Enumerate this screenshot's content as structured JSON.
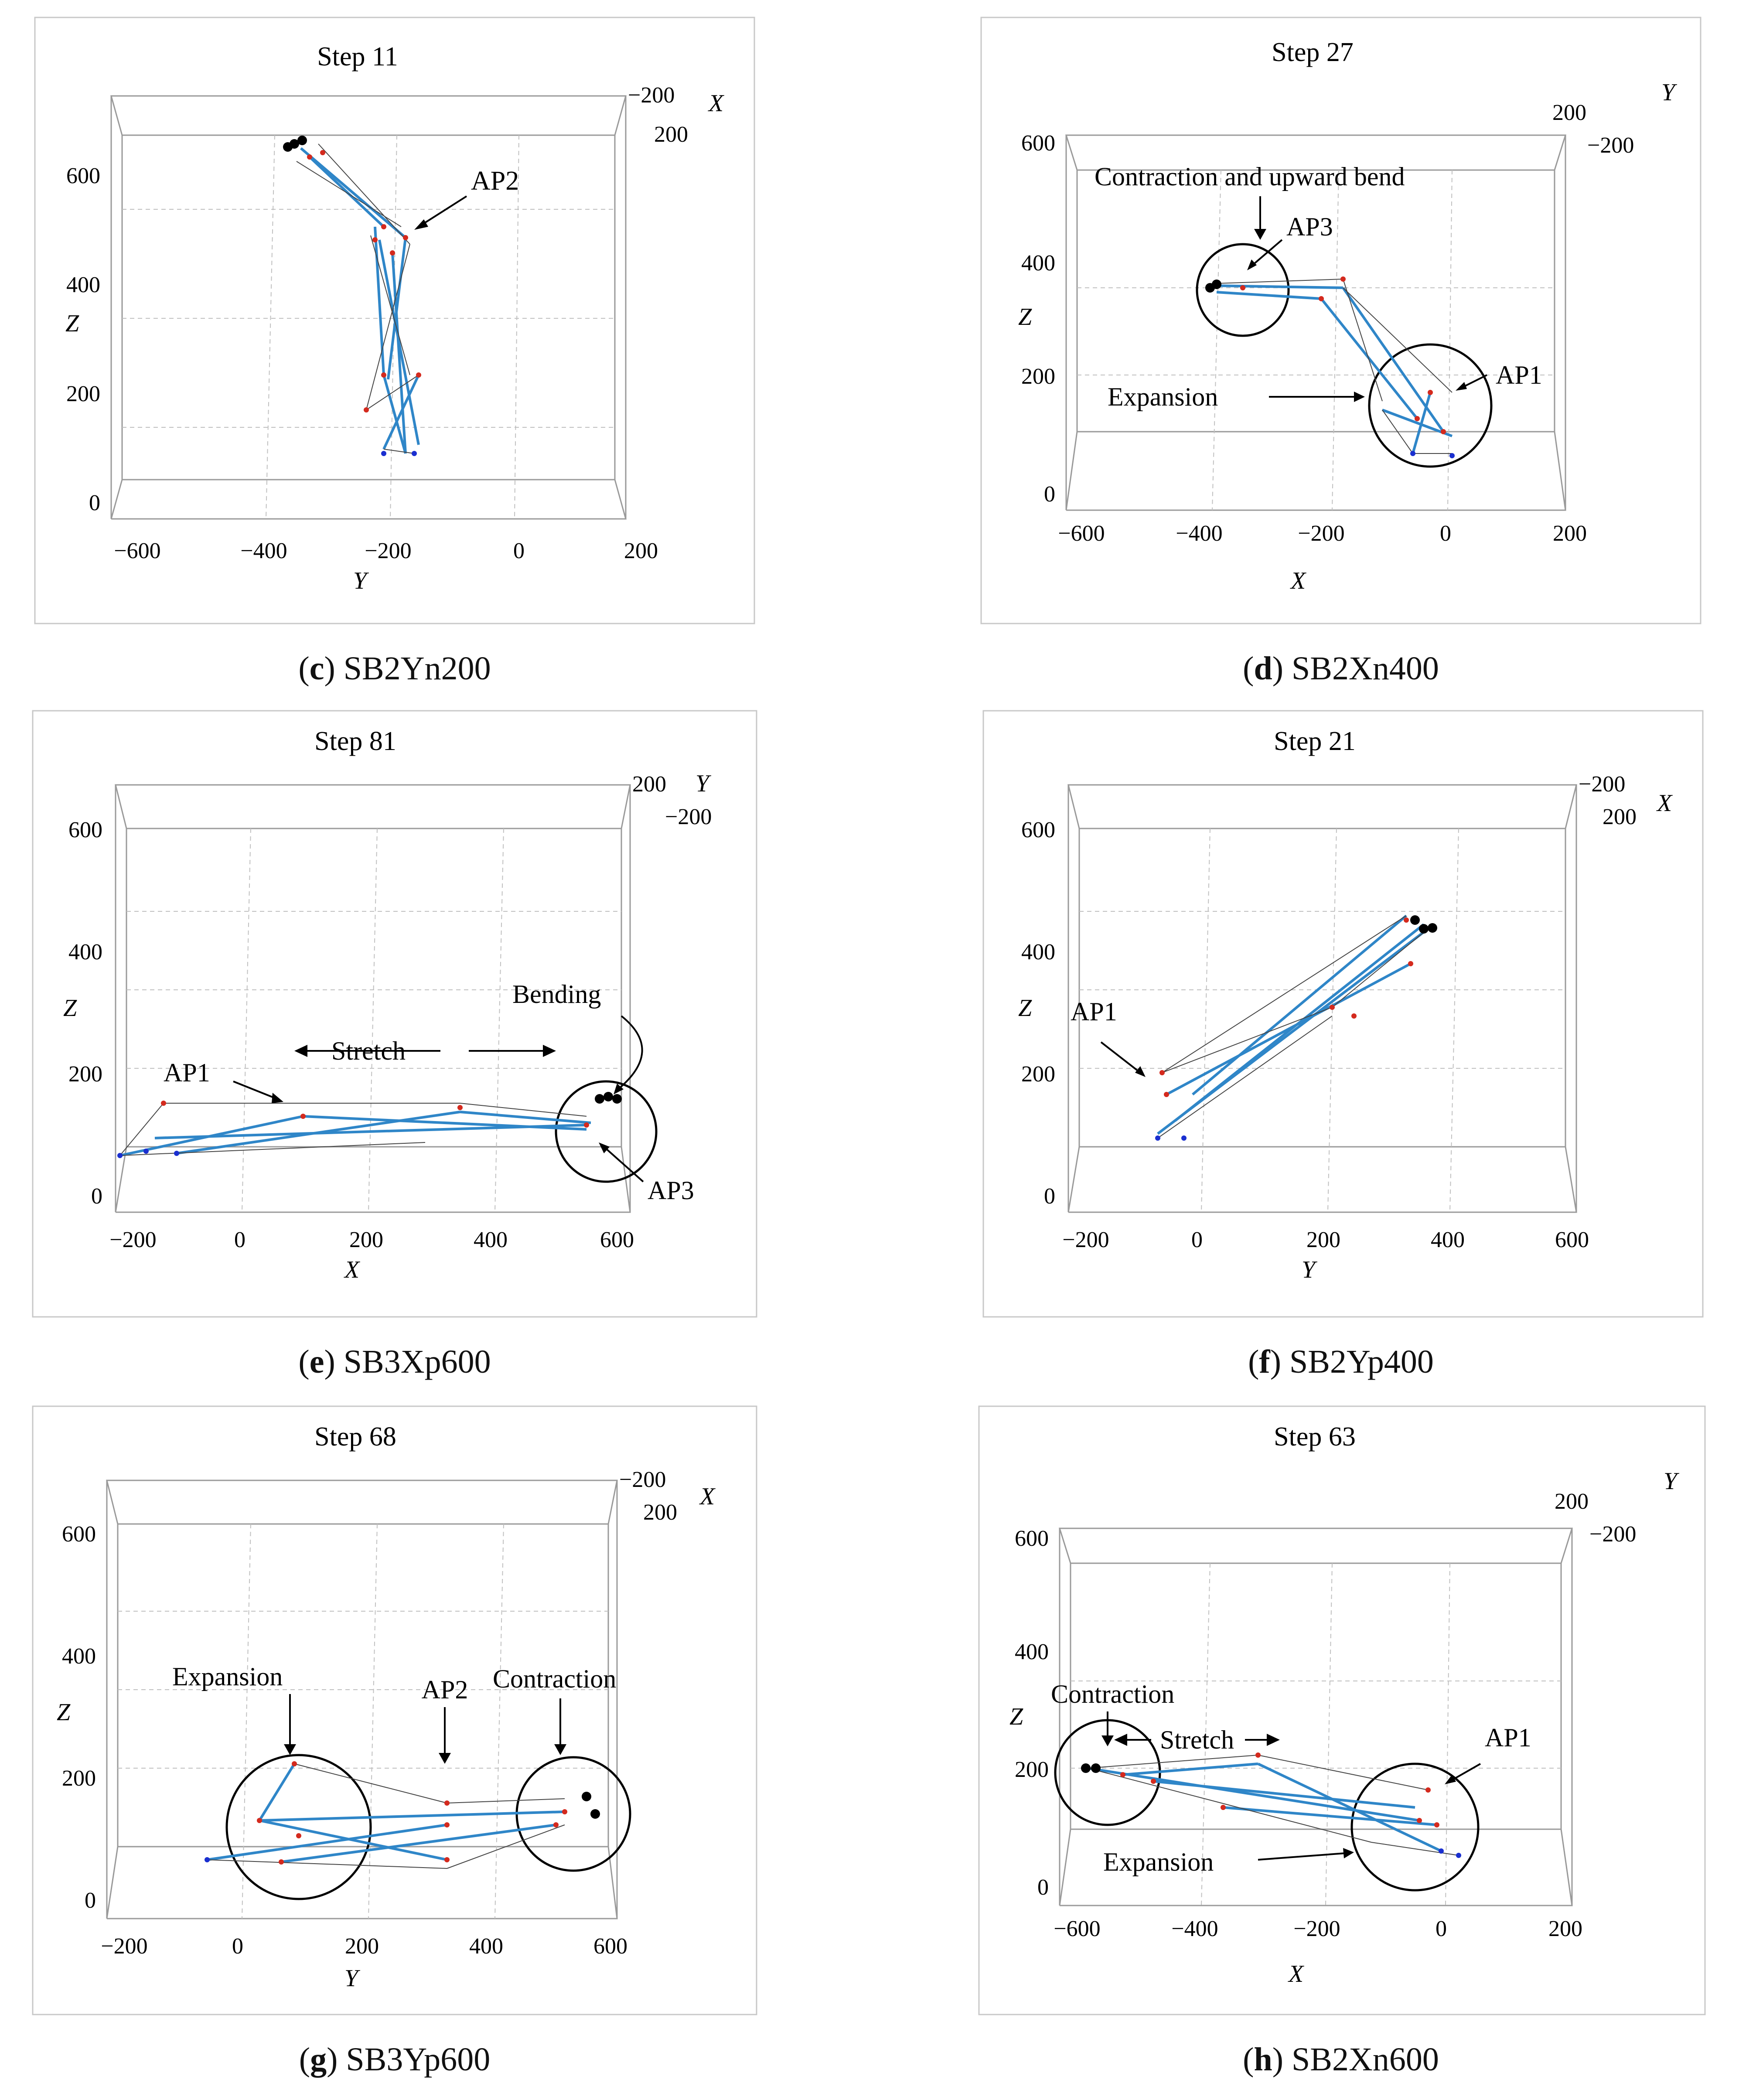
{
  "colors": {
    "frame": "#c8c8c8",
    "box": "#9a9a9a",
    "grid": "#c0c0c0",
    "link_blue": "#2f86c8",
    "link_light": "#3fb4e0",
    "link_dark": "#1f4f9a",
    "wire": "#444444",
    "node_red": "#d42a1e",
    "node_blue": "#1a2fd0",
    "node_black": "#000000"
  },
  "panels": [
    {
      "id": "c",
      "letter": "c",
      "name": "SB2Yn200",
      "title": "Step 11",
      "chart_data": {
        "type": "3d-truss-plot",
        "title": "Step 11",
        "horizontal_axis": {
          "label": "Y",
          "ticks": [
            "−600",
            "−400",
            "−200",
            "0",
            "200"
          ]
        },
        "vertical_axis": {
          "label": "Z",
          "ticks": [
            "0",
            "200",
            "400",
            "600"
          ]
        },
        "depth_axis": {
          "label": "X",
          "ticks": [
            "−200",
            "200"
          ]
        },
        "annotations": [
          {
            "text": "AP2",
            "kind": "arrow"
          }
        ]
      }
    },
    {
      "id": "d",
      "letter": "d",
      "name": "SB2Xn400",
      "title": "Step 27",
      "chart_data": {
        "type": "3d-truss-plot",
        "title": "Step 27",
        "horizontal_axis": {
          "label": "X",
          "ticks": [
            "−600",
            "−400",
            "−200",
            "0",
            "200"
          ]
        },
        "vertical_axis": {
          "label": "Z",
          "ticks": [
            "0",
            "200",
            "400",
            "600"
          ]
        },
        "depth_axis": {
          "label": "Y",
          "ticks": [
            "200",
            "−200"
          ]
        },
        "annotations": [
          {
            "text": "Contraction and upward bend",
            "kind": "arrow"
          },
          {
            "text": "AP3",
            "kind": "arrow"
          },
          {
            "text": "Expansion",
            "kind": "arrow"
          },
          {
            "text": "AP1",
            "kind": "arrow"
          }
        ]
      }
    },
    {
      "id": "e",
      "letter": "e",
      "name": "SB3Xp600",
      "title": "Step 81",
      "chart_data": {
        "type": "3d-truss-plot",
        "title": "Step 81",
        "horizontal_axis": {
          "label": "X",
          "ticks": [
            "−200",
            "0",
            "200",
            "400",
            "600"
          ]
        },
        "vertical_axis": {
          "label": "Z",
          "ticks": [
            "0",
            "200",
            "400",
            "600"
          ]
        },
        "depth_axis": {
          "label": "Y",
          "ticks": [
            "200",
            "−200"
          ]
        },
        "annotations": [
          {
            "text": "Bending",
            "kind": "arrow"
          },
          {
            "text": "AP1",
            "kind": "arrow"
          },
          {
            "text": "Stretch",
            "kind": "double-arrow"
          },
          {
            "text": "AP3",
            "kind": "arrow"
          }
        ]
      }
    },
    {
      "id": "f",
      "letter": "f",
      "name": "SB2Yp400",
      "title": "Step 21",
      "chart_data": {
        "type": "3d-truss-plot",
        "title": "Step 21",
        "horizontal_axis": {
          "label": "Y",
          "ticks": [
            "−200",
            "0",
            "200",
            "400",
            "600"
          ]
        },
        "vertical_axis": {
          "label": "Z",
          "ticks": [
            "0",
            "200",
            "400",
            "600"
          ]
        },
        "depth_axis": {
          "label": "X",
          "ticks": [
            "−200",
            "200"
          ]
        },
        "annotations": [
          {
            "text": "AP1",
            "kind": "arrow"
          }
        ]
      }
    },
    {
      "id": "g",
      "letter": "g",
      "name": "SB3Yp600",
      "title": "Step 68",
      "chart_data": {
        "type": "3d-truss-plot",
        "title": "Step 68",
        "horizontal_axis": {
          "label": "Y",
          "ticks": [
            "−200",
            "0",
            "200",
            "400",
            "600"
          ]
        },
        "vertical_axis": {
          "label": "Z",
          "ticks": [
            "0",
            "200",
            "400",
            "600"
          ]
        },
        "depth_axis": {
          "label": "X",
          "ticks": [
            "−200",
            "200"
          ]
        },
        "annotations": [
          {
            "text": "Expansion",
            "kind": "arrow"
          },
          {
            "text": "AP2",
            "kind": "arrow"
          },
          {
            "text": "Contraction",
            "kind": "arrow"
          }
        ]
      }
    },
    {
      "id": "h",
      "letter": "h",
      "name": "SB2Xn600",
      "title": "Step 63",
      "chart_data": {
        "type": "3d-truss-plot",
        "title": "Step 63",
        "horizontal_axis": {
          "label": "X",
          "ticks": [
            "−600",
            "−400",
            "−200",
            "0",
            "200"
          ]
        },
        "vertical_axis": {
          "label": "Z",
          "ticks": [
            "0",
            "200",
            "400",
            "600"
          ]
        },
        "depth_axis": {
          "label": "Y",
          "ticks": [
            "200",
            "−200"
          ]
        },
        "annotations": [
          {
            "text": "Contraction",
            "kind": "arrow"
          },
          {
            "text": "Stretch",
            "kind": "double-arrow"
          },
          {
            "text": "AP1",
            "kind": "arrow"
          },
          {
            "text": "Expansion",
            "kind": "arrow"
          }
        ]
      }
    }
  ]
}
